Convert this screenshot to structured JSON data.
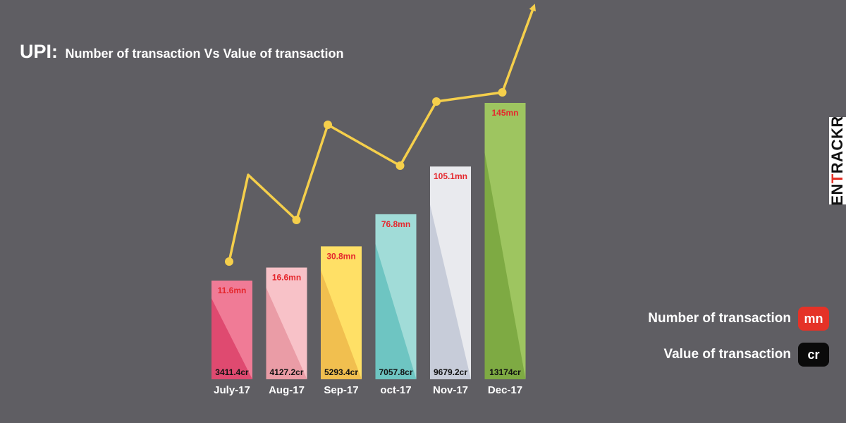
{
  "header": {
    "title_main": "UPI:",
    "title_sub": "Number of transaction Vs Value of transaction"
  },
  "brand": {
    "prefix": "EN",
    "accent": "T",
    "suffix": "RACKR"
  },
  "legend": {
    "count_label": "Number of transaction",
    "count_unit": "mn",
    "count_color": "#e53227",
    "value_label": "Value of transaction",
    "value_unit": "cr",
    "value_color": "#0a0a0a"
  },
  "chart_data": {
    "type": "bar",
    "categories": [
      "July-17",
      "Aug-17",
      "Sep-17",
      "oct-17",
      "Nov-17",
      "Dec-17"
    ],
    "series": [
      {
        "name": "Number of transaction",
        "unit": "mn",
        "values": [
          11.6,
          16.6,
          30.8,
          76.8,
          105.1,
          145
        ],
        "labels": [
          "11.6mn",
          "16.6mn",
          "30.8mn",
          "76.8mn",
          "105.1mn",
          "145mn"
        ]
      },
      {
        "name": "Value of transaction",
        "unit": "cr",
        "values": [
          3411.4,
          4127.2,
          5293.4,
          7057.8,
          9679.2,
          13174
        ],
        "labels": [
          "3411.4cr",
          "4127.2cr",
          "5293.4cr",
          "7057.8cr",
          "9679.2cr",
          "13174cr"
        ]
      }
    ],
    "bar_colors": [
      [
        "#f07b96",
        "#df4a70"
      ],
      [
        "#f8c2c8",
        "#ea9ca6"
      ],
      [
        "#ffe066",
        "#f1bf4f"
      ],
      [
        "#a1dcd8",
        "#6ec5c2"
      ],
      [
        "#e9eaee",
        "#c7ccd9"
      ],
      [
        "#9ec560",
        "#7eaa43"
      ]
    ],
    "line_color": "#f5cf4b",
    "label_color_top": "#e5272d",
    "label_color_bottom": "#111111",
    "legend_position": "right"
  }
}
